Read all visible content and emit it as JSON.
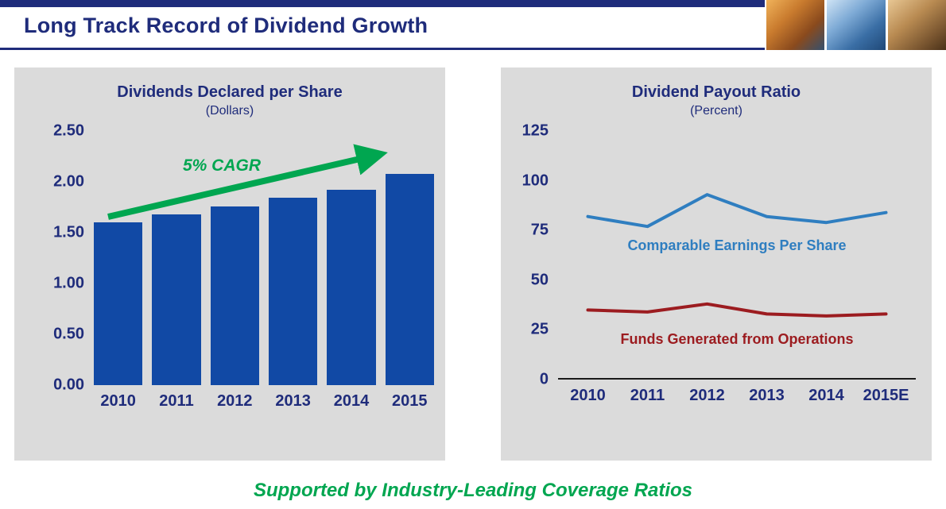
{
  "header": {
    "title": "Long Track Record of Dividend Growth",
    "photos": [
      "industrial-workers-photo",
      "plant-workers-photo",
      "field-worker-photo"
    ]
  },
  "colors": {
    "navy": "#1F2C7B",
    "bar_blue": "#1149A5",
    "green": "#00A650",
    "blue_line": "#2F7EC0",
    "dark_red": "#9C1C20",
    "panel_gray": "#DBDBDB"
  },
  "chart_data": [
    {
      "type": "bar",
      "title": "Dividends Declared per Share",
      "subtitle": "(Dollars)",
      "categories": [
        "2010",
        "2011",
        "2012",
        "2013",
        "2014",
        "2015"
      ],
      "values": [
        1.6,
        1.68,
        1.76,
        1.84,
        1.92,
        2.08
      ],
      "ylim": [
        0,
        2.5
      ],
      "yticks": [
        "2.50",
        "2.00",
        "1.50",
        "1.00",
        "0.50",
        "0.00"
      ],
      "annotation": "5% CAGR",
      "bar_color": "#1149A5",
      "annotation_color": "#00A650",
      "grid": false,
      "legend": "none"
    },
    {
      "type": "line",
      "title": "Dividend Payout Ratio",
      "subtitle": "(Percent)",
      "categories": [
        "2010",
        "2011",
        "2012",
        "2013",
        "2014",
        "2015E"
      ],
      "series": [
        {
          "name": "Comparable Earnings Per Share",
          "values": [
            82,
            77,
            93,
            82,
            79,
            84
          ],
          "color": "#2F7EC0"
        },
        {
          "name": "Funds Generated from Operations",
          "values": [
            35,
            34,
            38,
            33,
            32,
            33
          ],
          "color": "#9C1C20"
        }
      ],
      "ylim": [
        0,
        125
      ],
      "yticks": [
        "125",
        "100",
        "75",
        "50",
        "25",
        "0"
      ],
      "grid": false,
      "legend": "inline-labels"
    }
  ],
  "footer": {
    "tagline": "Supported by Industry-Leading Coverage Ratios"
  }
}
